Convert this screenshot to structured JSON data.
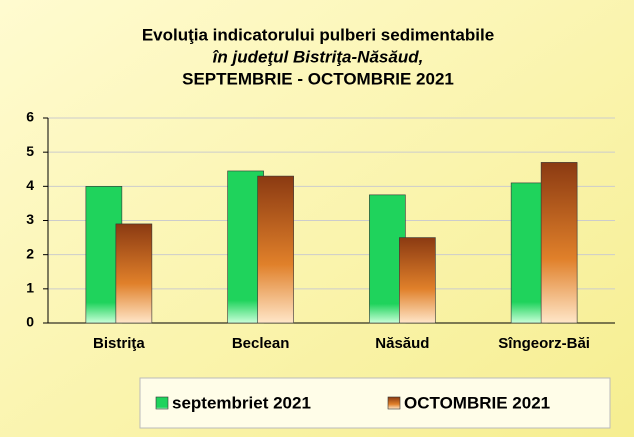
{
  "chart_data": {
    "type": "bar",
    "title": [
      "Evoluţia indicatorului pulberi sedimentabile",
      "în judeţul Bistriţa-Năsăud,",
      "SEPTEMBRIE - OCTOMBRIE 2021"
    ],
    "categories": [
      "Bistriţa",
      "Beclean",
      "Năsăud",
      "Sîngeorz-Băi"
    ],
    "series": [
      {
        "name": "septembriet 2021",
        "color": "#1fd35c",
        "values": [
          4.0,
          4.45,
          3.75,
          4.1
        ]
      },
      {
        "name": "OCTOMBRIE 2021",
        "color": "#8b3a12",
        "values": [
          2.9,
          4.3,
          2.5,
          4.7
        ]
      }
    ],
    "ylim": [
      0,
      6
    ],
    "yticks": [
      0,
      1,
      2,
      3,
      4,
      5,
      6
    ],
    "grid": true,
    "legend": "bottom"
  }
}
